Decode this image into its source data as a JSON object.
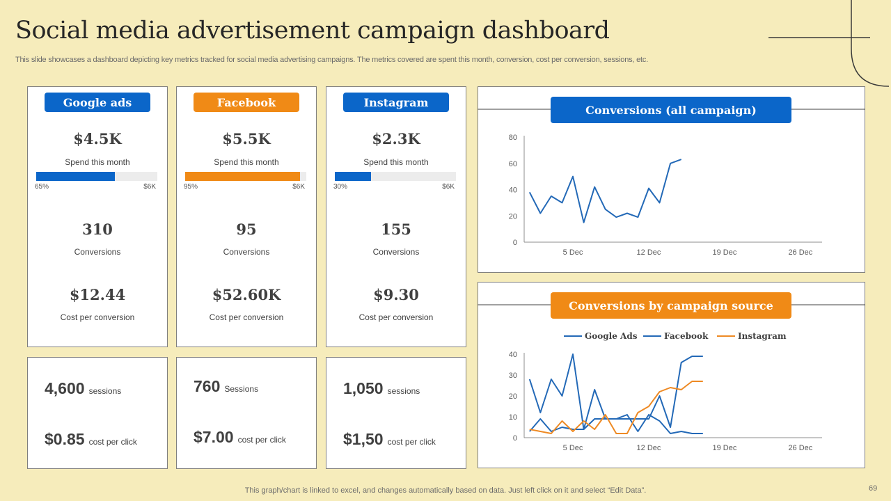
{
  "header": {
    "title": "Social media advertisement campaign dashboard",
    "subtitle": "This slide showcases a dashboard depicting key metrics tracked for social media advertising campaigns. The metrics covered are spent this month, conversion, cost per conversion, sessions, etc."
  },
  "colors": {
    "blue": "#0b66c9",
    "orange": "#f08a16",
    "line_blue": "#2369b7",
    "line_orange": "#ee8a24"
  },
  "platforms": [
    {
      "name": "Google ads",
      "color": "#0b66c9",
      "spend": "$4.5K",
      "spend_label": "Spend this month",
      "progress_pct": 65,
      "progress_label": "65%",
      "progress_max": "$6K",
      "conversions": "310",
      "conversions_label": "Conversions",
      "cpc": "$12.44",
      "cpc_label": "Cost per conversion",
      "sessions": "4,600",
      "sessions_label": "sessions",
      "cost_per_click": "$0.85",
      "cost_per_click_label": "cost per click"
    },
    {
      "name": "Facebook",
      "color": "#f08a16",
      "spend": "$5.5K",
      "spend_label": "Spend this month",
      "progress_pct": 95,
      "progress_label": "95%",
      "progress_max": "$6K",
      "conversions": "95",
      "conversions_label": "Conversions",
      "cpc": "$52.60K",
      "cpc_label": "Cost per conversion",
      "sessions": "760",
      "sessions_label": "Sessions",
      "cost_per_click": "$7.00",
      "cost_per_click_label": "cost per click"
    },
    {
      "name": "Instagram",
      "color": "#0b66c9",
      "spend": "$2.3K",
      "spend_label": "Spend this month",
      "progress_pct": 30,
      "progress_label": "30%",
      "progress_max": "$6K",
      "conversions": "155",
      "conversions_label": "Conversions",
      "cpc": "$9.30",
      "cpc_label": "Cost per conversion",
      "sessions": "1,050",
      "sessions_label": "sessions",
      "cost_per_click": "$1,50",
      "cost_per_click_label": "cost per click"
    }
  ],
  "chart_data": [
    {
      "type": "line",
      "title": "Conversions (all campaign)",
      "header_color": "#0b66c9",
      "x_tick_labels": [
        "5 Dec",
        "12 Dec",
        "19 Dec",
        "26 Dec"
      ],
      "x_tick_days": [
        5,
        12,
        19,
        26
      ],
      "xlim": [
        0.5,
        28
      ],
      "ylim": [
        0,
        80
      ],
      "y_ticks": [
        0,
        20,
        40,
        60,
        80
      ],
      "legend": false,
      "series": [
        {
          "name": "All campaigns",
          "color": "#2369b7",
          "x": [
            1,
            2,
            3,
            4,
            5,
            6,
            7,
            8,
            9,
            10,
            11,
            12,
            13,
            14,
            15
          ],
          "values": [
            38,
            22,
            35,
            30,
            50,
            15,
            42,
            25,
            19,
            22,
            19,
            41,
            30,
            60,
            63
          ]
        }
      ]
    },
    {
      "type": "line",
      "title": "Conversions by campaign source",
      "header_color": "#f08a16",
      "x_tick_labels": [
        "5 Dec",
        "12 Dec",
        "19 Dec",
        "26 Dec"
      ],
      "x_tick_days": [
        5,
        12,
        19,
        26
      ],
      "xlim": [
        0.5,
        28
      ],
      "ylim": [
        0,
        40
      ],
      "y_ticks": [
        0,
        10,
        20,
        30,
        40
      ],
      "legend": true,
      "legend_position": "top",
      "series": [
        {
          "name": "Google Ads",
          "color": "#2369b7",
          "x": [
            1,
            2,
            3,
            4,
            5,
            6,
            7,
            8,
            9,
            10,
            11,
            12,
            13,
            14,
            15,
            16,
            17
          ],
          "values": [
            28,
            12,
            28,
            20,
            40,
            4,
            23,
            9,
            9,
            11,
            3,
            11,
            8,
            2,
            3,
            2,
            2
          ]
        },
        {
          "name": "Facebook",
          "color": "#2369b7",
          "x": [
            1,
            2,
            3,
            4,
            5,
            6,
            7,
            8,
            9,
            10,
            11,
            12,
            13,
            14,
            15,
            16,
            17
          ],
          "values": [
            3,
            9,
            3,
            5,
            4,
            4,
            9,
            9,
            9,
            9,
            9,
            9,
            20,
            5,
            36,
            39,
            39
          ]
        },
        {
          "name": "Instagram",
          "color": "#ee8a24",
          "x": [
            1,
            2,
            3,
            4,
            5,
            6,
            7,
            8,
            9,
            10,
            11,
            12,
            13,
            14,
            15,
            16,
            17
          ],
          "values": [
            4,
            3,
            2,
            8,
            3,
            8,
            4,
            11,
            2,
            2,
            12,
            15,
            22,
            24,
            23,
            27,
            27
          ]
        }
      ]
    }
  ],
  "footer": {
    "note": "This graph/chart is linked to excel,  and changes automatically based on data. Just left click on it and select “Edit Data”.",
    "page_number": "69"
  }
}
